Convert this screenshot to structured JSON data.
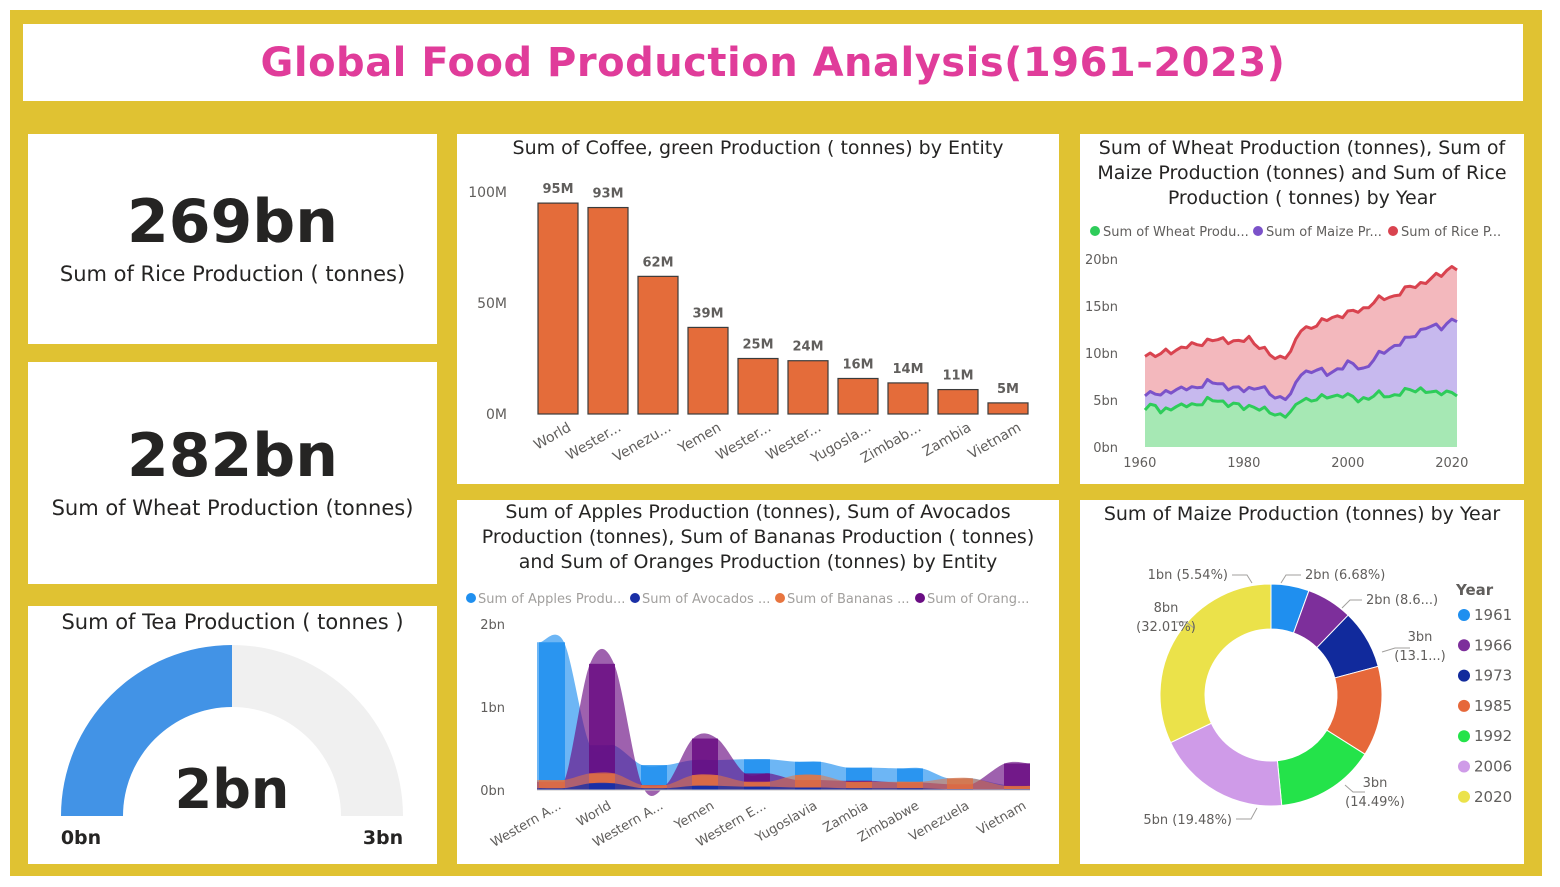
{
  "page": {
    "title": "Global Food Production Analysis(1961-2023)"
  },
  "kpis": {
    "rice": {
      "value": "269bn",
      "label": "Sum of Rice  Production ( tonnes)"
    },
    "wheat": {
      "value": "282bn",
      "label": "Sum of Wheat Production (tonnes)"
    }
  },
  "gauge": {
    "title": "Sum of Tea Production ( tonnes )",
    "value_label": "2bn",
    "min_label": "0bn",
    "max_label": "3bn",
    "value": 1.5,
    "min": 0,
    "max": 3,
    "fill_color": "#4293e6",
    "track_color": "#f0f0f0"
  },
  "chart_data": [
    {
      "type": "bar",
      "title": "Sum of Coffee, green Production ( tonnes) by Entity",
      "categories": [
        "World",
        "Wester...",
        "Venezu...",
        "Yemen",
        "Wester...",
        "Wester...",
        "Yugosla...",
        "Zimbab...",
        "Zambia",
        "Vietnam"
      ],
      "values": [
        95,
        93,
        62,
        39,
        25,
        24,
        16,
        14,
        11,
        5
      ],
      "data_labels": [
        "95M",
        "93M",
        "62M",
        "39M",
        "25M",
        "24M",
        "16M",
        "14M",
        "11M",
        "5M"
      ],
      "yticks": [
        "0M",
        "50M",
        "100M"
      ],
      "ylim": [
        0,
        100
      ],
      "bar_color": "#e46c3a"
    },
    {
      "type": "area",
      "title": "Sum of Wheat Production (tonnes), Sum of Maize Production (tonnes) and Sum of Rice Production ( tonnes) by Year",
      "legend": [
        "Sum of Wheat Produ...",
        "Sum of Maize Pr...",
        "Sum of Rice  P..."
      ],
      "colors": [
        "#2ecc5a",
        "#7b52c9",
        "#d9434f"
      ],
      "fill_colors": [
        "#a6e8b4",
        "#c7b9ee",
        "#f3b8bd"
      ],
      "xticks": [
        "1960",
        "1980",
        "2000",
        "2020"
      ],
      "yticks": [
        "0bn",
        "5bn",
        "10bn",
        "15bn",
        "20bn"
      ],
      "xlim": [
        1961,
        2021
      ],
      "ylim": [
        0,
        20
      ],
      "wheat_anchors": [
        [
          1961,
          4.3
        ],
        [
          1963,
          4.4
        ],
        [
          1964,
          3.6
        ],
        [
          1966,
          4.3
        ],
        [
          1970,
          4.4
        ],
        [
          1973,
          5.0
        ],
        [
          1978,
          4.6
        ],
        [
          1980,
          4.1
        ],
        [
          1982,
          4.4
        ],
        [
          1986,
          3.4
        ],
        [
          1989,
          3.6
        ],
        [
          1991,
          5.0
        ],
        [
          1995,
          5.2
        ],
        [
          1999,
          5.6
        ],
        [
          2002,
          5.0
        ],
        [
          2006,
          5.6
        ],
        [
          2008,
          5.4
        ],
        [
          2011,
          5.9
        ],
        [
          2014,
          6.2
        ],
        [
          2017,
          5.6
        ],
        [
          2019,
          6.0
        ],
        [
          2021,
          5.6
        ]
      ],
      "maize_anchors": [
        [
          1961,
          5.8
        ],
        [
          1964,
          5.5
        ],
        [
          1966,
          6.1
        ],
        [
          1970,
          6.2
        ],
        [
          1973,
          6.9
        ],
        [
          1976,
          6.6
        ],
        [
          1980,
          6.0
        ],
        [
          1983,
          6.5
        ],
        [
          1986,
          5.2
        ],
        [
          1989,
          5.5
        ],
        [
          1991,
          7.8
        ],
        [
          1994,
          8.3
        ],
        [
          1996,
          7.7
        ],
        [
          2000,
          8.9
        ],
        [
          2003,
          8.3
        ],
        [
          2006,
          9.8
        ],
        [
          2009,
          10.8
        ],
        [
          2012,
          11.6
        ],
        [
          2015,
          12.8
        ],
        [
          2018,
          12.7
        ],
        [
          2020,
          13.6
        ],
        [
          2021,
          13.5
        ]
      ],
      "rice_anchors": [
        [
          1961,
          10.0
        ],
        [
          1963,
          9.6
        ],
        [
          1965,
          10.2
        ],
        [
          1968,
          10.4
        ],
        [
          1970,
          10.9
        ],
        [
          1973,
          11.2
        ],
        [
          1976,
          11.5
        ],
        [
          1979,
          11.1
        ],
        [
          1981,
          11.6
        ],
        [
          1983,
          10.7
        ],
        [
          1986,
          9.4
        ],
        [
          1989,
          10.0
        ],
        [
          1991,
          12.5
        ],
        [
          1994,
          13.0
        ],
        [
          1997,
          13.8
        ],
        [
          2000,
          14.2
        ],
        [
          2003,
          14.7
        ],
        [
          2006,
          15.7
        ],
        [
          2009,
          16.1
        ],
        [
          2012,
          17.0
        ],
        [
          2015,
          17.6
        ],
        [
          2018,
          18.4
        ],
        [
          2020,
          19.2
        ],
        [
          2021,
          19.0
        ]
      ]
    },
    {
      "type": "area",
      "title": "Sum of Apples Production (tonnes), Sum of Avocados Production (tonnes), Sum of Bananas Production ( tonnes) and Sum of Oranges Production (tonnes) by Entity",
      "legend": [
        "Sum of Apples Produ...",
        "Sum of Avocados ...",
        "Sum of Bananas  ...",
        "Sum of Orang..."
      ],
      "colors": [
        "#1f8fef",
        "#1a2fa6",
        "#e8753f",
        "#6a0d83"
      ],
      "categories": [
        "Western A...",
        "World",
        "Western A...",
        "Yemen",
        "Western E...",
        "Yugoslavia",
        "Zambia",
        "Zimbabwe",
        "Venezuela",
        "Vietnam"
      ],
      "yticks": [
        "0bn",
        "1bn",
        "2bn"
      ],
      "ylim": [
        0,
        2
      ],
      "series": [
        {
          "name": "Sum of Apples Produ...",
          "values": [
            1.78,
            0.54,
            0.3,
            0.36,
            0.37,
            0.34,
            0.27,
            0.26,
            0.14,
            0.06
          ]
        },
        {
          "name": "Sum of Avocados ...",
          "values": [
            0.02,
            0.08,
            0.02,
            0.05,
            0.04,
            0.03,
            0.02,
            0.02,
            0.01,
            0.01
          ]
        },
        {
          "name": "Sum of Bananas  ...",
          "values": [
            0.12,
            0.2,
            0.06,
            0.18,
            0.1,
            0.18,
            0.1,
            0.1,
            0.14,
            0.05
          ]
        },
        {
          "name": "Sum of Orang...",
          "values": [
            0.1,
            1.52,
            0.06,
            0.62,
            0.2,
            0.12,
            0.11,
            0.09,
            0.07,
            0.32
          ]
        }
      ]
    },
    {
      "type": "pie",
      "title": "Sum of Maize Production (tonnes) by Year",
      "legend_title": "Year",
      "slices": [
        {
          "label": "1961",
          "value": 5.54,
          "color": "#1f8fef",
          "callout": "1bn (5.54%)"
        },
        {
          "label": "1966",
          "value": 6.68,
          "color": "#7d2f9b",
          "callout": "2bn (6.68%)"
        },
        {
          "label": "1973",
          "value": 8.6,
          "color": "#112a9c",
          "callout": "2bn (8.6...)"
        },
        {
          "label": "1985",
          "value": 13.1,
          "color": "#e6683a",
          "callout": "3bn (13.1...)"
        },
        {
          "label": "1992",
          "value": 14.49,
          "color": "#24e34a",
          "callout": "3bn (14.49%)"
        },
        {
          "label": "2006",
          "value": 19.48,
          "color": "#cf9be8",
          "callout": "5bn (19.48%)"
        },
        {
          "label": "2020",
          "value": 32.01,
          "color": "#ebe24a",
          "callout": "8bn (32.01%)"
        }
      ]
    }
  ]
}
